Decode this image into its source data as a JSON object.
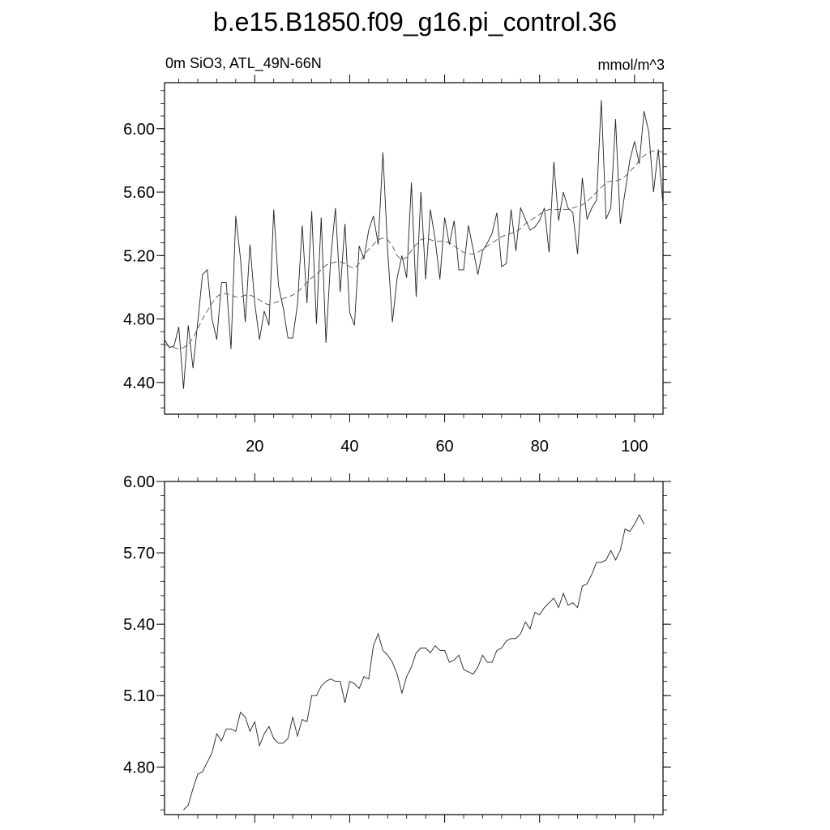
{
  "title": "b.e15.B1850.f09_g16.pi_control.36",
  "chart_data": [
    {
      "type": "line",
      "left_label": "0m SiO3, ATL_49N-66N",
      "right_label": "mmol/m^3",
      "xlim": [
        1,
        106
      ],
      "ylim": [
        4.2,
        6.29
      ],
      "x_ticks": [
        20,
        40,
        60,
        80,
        100
      ],
      "x_tick_labels": [
        "20",
        "40",
        "60",
        "80",
        "100"
      ],
      "y_ticks": [
        4.4,
        4.8,
        5.2,
        5.6,
        6.0
      ],
      "y_tick_labels": [
        "4.40",
        "4.80",
        "5.20",
        "5.60",
        "6.00"
      ],
      "grid": false,
      "x": [
        1,
        2,
        3,
        4,
        5,
        6,
        7,
        8,
        9,
        10,
        11,
        12,
        13,
        14,
        15,
        16,
        17,
        18,
        19,
        20,
        21,
        22,
        23,
        24,
        25,
        26,
        27,
        28,
        29,
        30,
        31,
        32,
        33,
        34,
        35,
        36,
        37,
        38,
        39,
        40,
        41,
        42,
        43,
        44,
        45,
        46,
        47,
        48,
        49,
        50,
        51,
        52,
        53,
        54,
        55,
        56,
        57,
        58,
        59,
        60,
        61,
        62,
        63,
        64,
        65,
        66,
        67,
        68,
        69,
        70,
        71,
        72,
        73,
        74,
        75,
        76,
        77,
        78,
        79,
        80,
        81,
        82,
        83,
        84,
        85,
        86,
        87,
        88,
        89,
        90,
        91,
        92,
        93,
        94,
        95,
        96,
        97,
        98,
        99,
        100,
        101,
        102,
        103,
        104,
        105,
        106
      ],
      "series": [
        {
          "style": "solid",
          "values": [
            4.67,
            4.62,
            4.63,
            4.75,
            4.36,
            4.76,
            4.49,
            4.78,
            5.08,
            5.11,
            4.8,
            4.67,
            5.03,
            5.03,
            4.61,
            5.45,
            5.18,
            4.78,
            5.27,
            4.9,
            4.67,
            4.85,
            4.76,
            5.49,
            5.01,
            4.87,
            4.68,
            4.68,
            4.89,
            5.39,
            4.9,
            5.48,
            4.77,
            5.44,
            4.65,
            5.18,
            5.5,
            4.97,
            5.4,
            4.84,
            4.76,
            5.26,
            5.18,
            5.36,
            5.45,
            5.27,
            5.85,
            5.23,
            4.78,
            5.06,
            5.2,
            5.06,
            5.66,
            4.94,
            5.6,
            5.05,
            5.49,
            5.3,
            5.05,
            5.44,
            5.27,
            5.42,
            5.11,
            5.11,
            5.39,
            5.24,
            5.08,
            5.23,
            5.28,
            5.34,
            5.47,
            5.13,
            5.15,
            5.49,
            5.23,
            5.5,
            5.43,
            5.36,
            5.38,
            5.42,
            5.5,
            5.22,
            5.79,
            5.42,
            5.6,
            5.5,
            5.47,
            5.21,
            5.69,
            5.43,
            5.5,
            5.55,
            6.18,
            5.43,
            5.5,
            6.06,
            5.4,
            5.6,
            5.8,
            5.92,
            5.78,
            6.11,
            5.98,
            5.6,
            5.87,
            5.52
          ]
        },
        {
          "style": "dashed",
          "values": [
            4.64,
            4.63,
            4.62,
            4.61,
            4.62,
            4.64,
            4.68,
            4.74,
            4.8,
            4.85,
            4.9,
            4.94,
            4.96,
            4.96,
            4.95,
            4.94,
            4.94,
            4.95,
            4.95,
            4.94,
            4.92,
            4.9,
            4.89,
            4.9,
            4.91,
            4.93,
            4.94,
            4.95,
            4.97,
            5.0,
            5.03,
            5.06,
            5.08,
            5.11,
            5.14,
            5.15,
            5.16,
            5.16,
            5.15,
            5.13,
            5.12,
            5.15,
            5.2,
            5.24,
            5.27,
            5.3,
            5.31,
            5.3,
            5.26,
            5.2,
            5.17,
            5.19,
            5.23,
            5.27,
            5.3,
            5.31,
            5.3,
            5.29,
            5.29,
            5.29,
            5.28,
            5.26,
            5.24,
            5.22,
            5.21,
            5.21,
            5.22,
            5.24,
            5.26,
            5.28,
            5.3,
            5.32,
            5.33,
            5.34,
            5.35,
            5.37,
            5.4,
            5.42,
            5.44,
            5.46,
            5.48,
            5.49,
            5.49,
            5.49,
            5.49,
            5.49,
            5.5,
            5.51,
            5.52,
            5.54,
            5.57,
            5.6,
            5.63,
            5.66,
            5.67,
            5.67,
            5.68,
            5.7,
            5.73,
            5.76,
            5.8,
            5.83,
            5.85,
            5.86,
            5.86,
            5.85
          ]
        }
      ]
    },
    {
      "type": "line",
      "xlim": [
        1,
        106
      ],
      "ylim": [
        4.6,
        6.0
      ],
      "y_ticks": [
        4.8,
        5.1,
        5.4,
        5.7,
        6.0
      ],
      "y_tick_labels": [
        "4.80",
        "5.10",
        "5.40",
        "5.70",
        "6.00"
      ],
      "x_ticks": [
        20,
        40,
        60,
        80,
        100
      ],
      "grid": false,
      "x": [
        5,
        6,
        7,
        8,
        9,
        10,
        11,
        12,
        13,
        14,
        15,
        16,
        17,
        18,
        19,
        20,
        21,
        22,
        23,
        24,
        25,
        26,
        27,
        28,
        29,
        30,
        31,
        32,
        33,
        34,
        35,
        36,
        37,
        38,
        39,
        40,
        41,
        42,
        43,
        44,
        45,
        46,
        47,
        48,
        49,
        50,
        51,
        52,
        53,
        54,
        55,
        56,
        57,
        58,
        59,
        60,
        61,
        62,
        63,
        64,
        65,
        66,
        67,
        68,
        69,
        70,
        71,
        72,
        73,
        74,
        75,
        76,
        77,
        78,
        79,
        80,
        81,
        82,
        83,
        84,
        85,
        86,
        87,
        88,
        89,
        90,
        91,
        92,
        93,
        94,
        95,
        96,
        97,
        98,
        99,
        100,
        101,
        102
      ],
      "series": [
        {
          "style": "solid",
          "values": [
            4.62,
            4.64,
            4.71,
            4.77,
            4.78,
            4.82,
            4.86,
            4.94,
            4.91,
            4.96,
            4.96,
            4.95,
            5.03,
            5.01,
            4.95,
            4.99,
            4.89,
            4.94,
            4.97,
            4.92,
            4.9,
            4.9,
            4.92,
            5.01,
            4.93,
            5.0,
            4.99,
            5.1,
            5.1,
            5.14,
            5.16,
            5.17,
            5.16,
            5.16,
            5.07,
            5.16,
            5.15,
            5.13,
            5.18,
            5.17,
            5.31,
            5.36,
            5.29,
            5.27,
            5.24,
            5.19,
            5.11,
            5.18,
            5.22,
            5.28,
            5.3,
            5.3,
            5.28,
            5.31,
            5.29,
            5.29,
            5.24,
            5.25,
            5.27,
            5.21,
            5.2,
            5.19,
            5.22,
            5.27,
            5.24,
            5.24,
            5.29,
            5.3,
            5.33,
            5.34,
            5.34,
            5.36,
            5.41,
            5.38,
            5.45,
            5.44,
            5.47,
            5.49,
            5.51,
            5.47,
            5.53,
            5.48,
            5.49,
            5.47,
            5.56,
            5.57,
            5.61,
            5.66,
            5.66,
            5.67,
            5.71,
            5.67,
            5.71,
            5.8,
            5.79,
            5.82,
            5.86,
            5.82
          ]
        }
      ]
    }
  ]
}
